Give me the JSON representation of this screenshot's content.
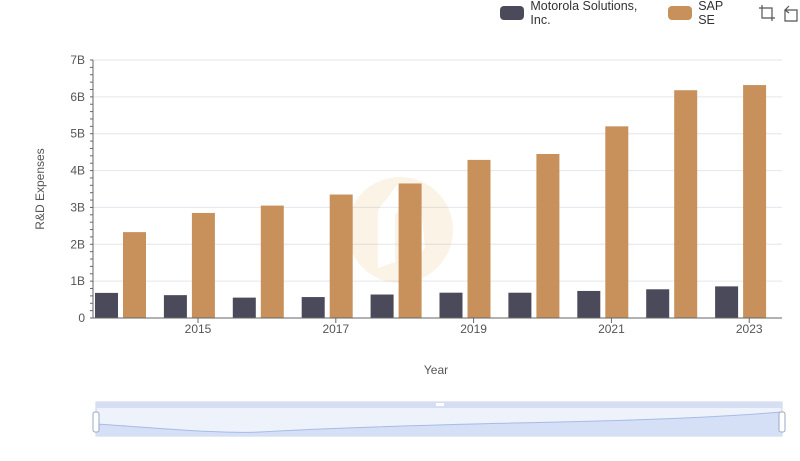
{
  "legend": {
    "items": [
      {
        "label": "Motorola Solutions, Inc.",
        "color": "#4a4a5a"
      },
      {
        "label": "SAP SE",
        "color": "#c8915b"
      }
    ]
  },
  "toolbar": {
    "icons": [
      "zoom-select-icon",
      "zoom-reset-icon"
    ]
  },
  "chart_data": {
    "type": "bar",
    "title": "",
    "xlabel": "Year",
    "ylabel": "R&D Expenses",
    "ylim": [
      0,
      7000000000
    ],
    "y_ticks": [
      "0",
      "1B",
      "2B",
      "3B",
      "4B",
      "5B",
      "6B",
      "7B"
    ],
    "x_tick_labels": [
      "2015",
      "2017",
      "2019",
      "2021",
      "2023"
    ],
    "categories": [
      "2014",
      "2015",
      "2016",
      "2017",
      "2018",
      "2019",
      "2020",
      "2021",
      "2022",
      "2023"
    ],
    "series": [
      {
        "name": "Motorola Solutions, Inc.",
        "color": "#4a4a5a",
        "values": [
          681000000,
          620000000,
          553000000,
          568000000,
          637000000,
          687000000,
          686000000,
          734000000,
          779000000,
          858000000
        ]
      },
      {
        "name": "SAP SE",
        "color": "#c8915b",
        "values": [
          2330000000,
          2850000000,
          3050000000,
          3350000000,
          3650000000,
          4290000000,
          4450000000,
          5200000000,
          6180000000,
          6320000000
        ]
      }
    ],
    "grid": true,
    "legend_position": "top-right",
    "data_zoom": {
      "start": 0,
      "end": 100
    }
  }
}
